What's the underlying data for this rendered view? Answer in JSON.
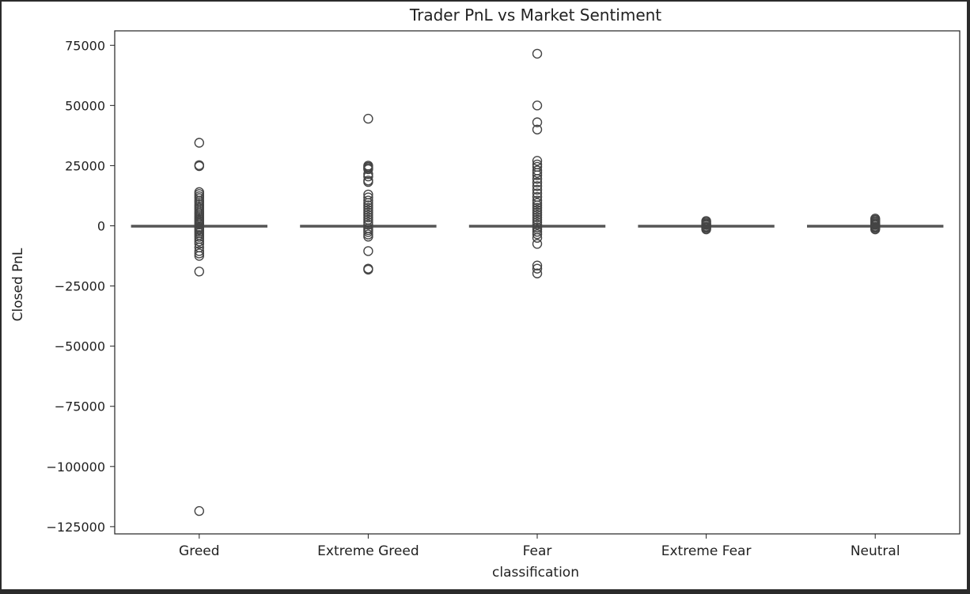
{
  "chart_data": {
    "type": "box",
    "title": "Trader PnL vs Market Sentiment",
    "xlabel": "classification",
    "ylabel": "Closed PnL",
    "categories": [
      "Greed",
      "Extreme Greed",
      "Fear",
      "Extreme Fear",
      "Neutral"
    ],
    "ylim": [
      -128000,
      81000
    ],
    "yticks": [
      75000,
      50000,
      25000,
      0,
      -25000,
      -50000,
      -75000,
      -100000,
      -125000
    ],
    "ytick_labels": [
      "75000",
      "50000",
      "25000",
      "0",
      "−25000",
      "−50000",
      "−75000",
      "−100000",
      "−125000"
    ],
    "grid": false,
    "legend": "none",
    "box_color": "#ffffff",
    "line_color": "#555555",
    "boxes": [
      {
        "category": "Greed",
        "whisker_low": 0,
        "q1": 0,
        "median": 0,
        "q3": 0,
        "whisker_high": 0,
        "outliers": [
          34500,
          25200,
          24800,
          14000,
          13200,
          12300,
          11500,
          10500,
          9800,
          9000,
          8200,
          7500,
          6800,
          6000,
          5300,
          4700,
          4000,
          3400,
          2800,
          2200,
          1600,
          1000,
          500,
          -500,
          -1000,
          -1600,
          -2300,
          -3000,
          -3800,
          -4600,
          -5500,
          -6500,
          -7500,
          -9000,
          -10500,
          -11500,
          -12500,
          -19000,
          -118500
        ]
      },
      {
        "category": "Extreme Greed",
        "whisker_low": 0,
        "q1": 0,
        "median": 0,
        "q3": 0,
        "whisker_high": 0,
        "outliers": [
          44500,
          25000,
          24500,
          24000,
          23500,
          21500,
          20500,
          18800,
          18200,
          13000,
          11800,
          10500,
          9500,
          8500,
          7500,
          6500,
          5500,
          4500,
          3500,
          2500,
          1500,
          500,
          -1000,
          -1800,
          -2600,
          -3600,
          -4500,
          -10500,
          -17800,
          -18200
        ]
      },
      {
        "category": "Fear",
        "whisker_low": 0,
        "q1": 0,
        "median": 0,
        "q3": 0,
        "whisker_high": 0,
        "outliers": [
          71500,
          50000,
          43000,
          40000,
          27000,
          25500,
          24500,
          23000,
          22000,
          21000,
          19500,
          18000,
          16500,
          15000,
          13500,
          12000,
          10500,
          9500,
          8500,
          7500,
          6500,
          5500,
          4500,
          3500,
          2500,
          1500,
          500,
          -700,
          -1500,
          -2500,
          -3500,
          -5000,
          -7500,
          -16500,
          -17800,
          -19800
        ]
      },
      {
        "category": "Extreme Fear",
        "whisker_low": 0,
        "q1": 0,
        "median": 0,
        "q3": 0,
        "whisker_high": 0,
        "outliers": [
          2000,
          1500,
          1000,
          600,
          300,
          -300,
          -600,
          -1000,
          -1500
        ]
      },
      {
        "category": "Neutral",
        "whisker_low": 0,
        "q1": 0,
        "median": 0,
        "q3": 0,
        "whisker_high": 0,
        "outliers": [
          3000,
          2500,
          2000,
          1500,
          1000,
          600,
          300,
          -300,
          -600,
          -1000,
          -1500
        ]
      }
    ]
  }
}
